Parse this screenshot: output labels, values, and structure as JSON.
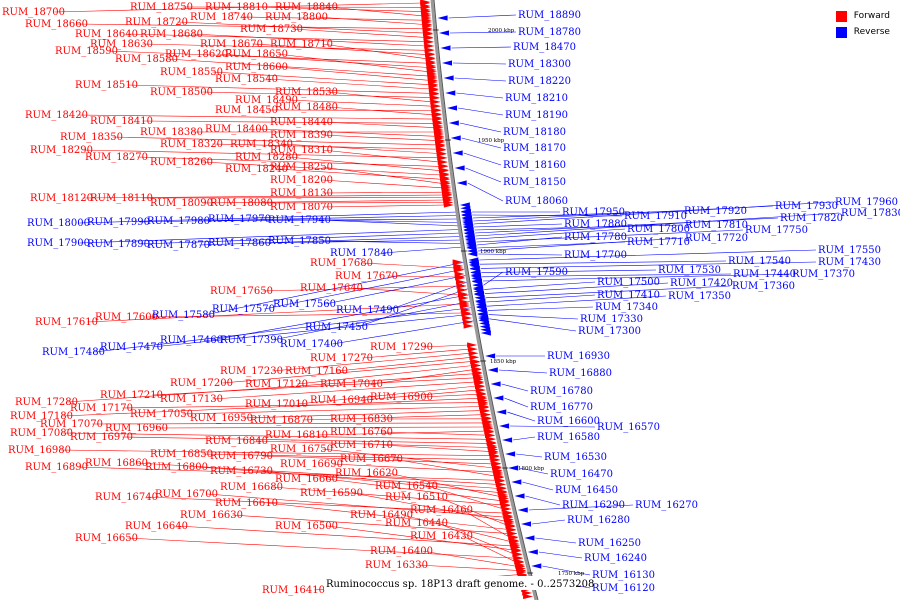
{
  "caption": "Ruminococcus sp. 18P13 draft genome. - 0..2573208",
  "legend": [
    {
      "label": "Forward",
      "color": "#ff0000"
    },
    {
      "label": "Reverse",
      "color": "#0000ff"
    }
  ],
  "scale_marks": [
    "2000 kbp",
    "1950 kbp",
    "1900 kbp",
    "1850 kbp",
    "1800 kbp",
    "1750 kbp"
  ],
  "forward_labels": [
    "RUM_18700",
    "RUM_18750",
    "RUM_18810",
    "RUM_18840",
    "RUM_18740",
    "RUM_18800",
    "RUM_18660",
    "RUM_18720",
    "RUM_18730",
    "RUM_18640",
    "RUM_18680",
    "RUM_18630",
    "RUM_18670",
    "RUM_18710",
    "RUM_18590",
    "RUM_18620",
    "RUM_18650",
    "RUM_18580",
    "RUM_18600",
    "RUM_18550",
    "RUM_18540",
    "RUM_18510",
    "RUM_18500",
    "RUM_18530",
    "RUM_18490",
    "RUM_18450",
    "RUM_18480",
    "RUM_18420",
    "RUM_18410",
    "RUM_18440",
    "RUM_18380",
    "RUM_18400",
    "RUM_18390",
    "RUM_18350",
    "RUM_18320",
    "RUM_18340",
    "RUM_18290",
    "RUM_18310",
    "RUM_18270",
    "RUM_18280",
    "RUM_18260",
    "RUM_18240",
    "RUM_18250",
    "RUM_18200",
    "RUM_18130",
    "RUM_18120",
    "RUM_18110",
    "RUM_18090",
    "RUM_18080",
    "RUM_18070",
    "RUM_17680",
    "RUM_17670",
    "RUM_17650",
    "RUM_17640",
    "RUM_17610",
    "RUM_17600",
    "RUM_17290",
    "RUM_17270",
    "RUM_17230",
    "RUM_17160",
    "RUM_17200",
    "RUM_17120",
    "RUM_17040",
    "RUM_17280",
    "RUM_17210",
    "RUM_17130",
    "RUM_17010",
    "RUM_16940",
    "RUM_16900",
    "RUM_17180",
    "RUM_17170",
    "RUM_17050",
    "RUM_16950",
    "RUM_16870",
    "RUM_16830",
    "RUM_17070",
    "RUM_16960",
    "RUM_16810",
    "RUM_16760",
    "RUM_17080",
    "RUM_16970",
    "RUM_16840",
    "RUM_16710",
    "RUM_16980",
    "RUM_16850",
    "RUM_16790",
    "RUM_16750",
    "RUM_16690",
    "RUM_16670",
    "RUM_16890",
    "RUM_16860",
    "RUM_16800",
    "RUM_16730",
    "RUM_16620",
    "RUM_16660",
    "RUM_16680",
    "RUM_16540",
    "RUM_16740",
    "RUM_16700",
    "RUM_16590",
    "RUM_16510",
    "RUM_16610",
    "RUM_16630",
    "RUM_16460",
    "RUM_16490",
    "RUM_16640",
    "RUM_16500",
    "RUM_16440",
    "RUM_16650",
    "RUM_16430",
    "RUM_16400",
    "RUM_16330",
    "RUM_16410"
  ],
  "reverse_labels": [
    "RUM_18890",
    "RUM_18780",
    "RUM_18470",
    "RUM_18300",
    "RUM_18220",
    "RUM_18210",
    "RUM_18190",
    "RUM_18180",
    "RUM_18170",
    "RUM_18160",
    "RUM_18150",
    "RUM_18060",
    "RUM_17950",
    "RUM_17910",
    "RUM_17920",
    "RUM_17930",
    "RUM_17960",
    "RUM_17880",
    "RUM_17810",
    "RUM_17820",
    "RUM_17830",
    "RUM_17800",
    "RUM_17750",
    "RUM_17780",
    "RUM_17710",
    "RUM_17720",
    "RUM_17700",
    "RUM_17550",
    "RUM_17540",
    "RUM_17430",
    "RUM_17530",
    "RUM_17440",
    "RUM_17370",
    "RUM_17590",
    "RUM_17500",
    "RUM_17420",
    "RUM_17360",
    "RUM_17410",
    "RUM_17350",
    "RUM_17340",
    "RUM_17330",
    "RUM_17300",
    "RUM_18000",
    "RUM_17990",
    "RUM_17980",
    "RUM_17970",
    "RUM_17940",
    "RUM_17900",
    "RUM_17890",
    "RUM_17870",
    "RUM_17860",
    "RUM_17850",
    "RUM_17840",
    "RUM_17580",
    "RUM_17570",
    "RUM_17560",
    "RUM_17490",
    "RUM_17450",
    "RUM_17460",
    "RUM_17390",
    "RUM_17480",
    "RUM_17470",
    "RUM_17400",
    "RUM_16930",
    "RUM_16880",
    "RUM_16780",
    "RUM_16770",
    "RUM_16600",
    "RUM_16570",
    "RUM_16580",
    "RUM_16530",
    "RUM_16470",
    "RUM_16450",
    "RUM_16290",
    "RUM_16270",
    "RUM_16280",
    "RUM_16250",
    "RUM_16240",
    "RUM_16130",
    "RUM_16120"
  ]
}
